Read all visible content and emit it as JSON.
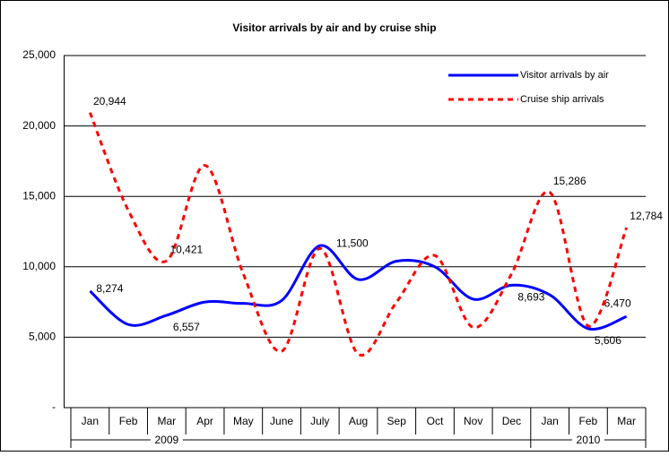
{
  "chart_data": {
    "type": "line",
    "title": "Visitor arrivals by air and by cruise ship",
    "category_groups": [
      {
        "label": "2009",
        "categories": [
          "Jan",
          "Feb",
          "Mar",
          "Apr",
          "May",
          "June",
          "July",
          "Aug",
          "Sep",
          "Oct",
          "Nov",
          "Dec"
        ]
      },
      {
        "label": "2010",
        "categories": [
          "Jan",
          "Feb",
          "Mar"
        ]
      }
    ],
    "series": [
      {
        "name": "Visitor arrivals by air",
        "color": "#0000ff",
        "dash": false,
        "values": [
          8274,
          5900,
          6557,
          7500,
          7400,
          7600,
          11500,
          9100,
          10400,
          10000,
          7700,
          8693,
          8000,
          5606,
          6470
        ],
        "value_labels": [
          "8,274",
          null,
          "6,557",
          null,
          null,
          null,
          "11,500",
          null,
          null,
          null,
          null,
          "8,693",
          null,
          "5,606",
          "6,470"
        ]
      },
      {
        "name": "Cruise ship arrivals",
        "color": "#ff0000",
        "dash": true,
        "values": [
          20944,
          14000,
          10421,
          17200,
          9500,
          4000,
          11300,
          3800,
          7500,
          10800,
          5700,
          9500,
          15286,
          5800,
          12784
        ],
        "value_labels": [
          "20,944",
          null,
          "10,421",
          null,
          null,
          null,
          null,
          null,
          null,
          null,
          null,
          null,
          "15,286",
          null,
          "12,784"
        ]
      }
    ],
    "ylim": [
      0,
      25000
    ],
    "yticks": [
      {
        "value": 0,
        "label": "-"
      },
      {
        "value": 5000,
        "label": "5,000"
      },
      {
        "value": 10000,
        "label": "10,000"
      },
      {
        "value": 15000,
        "label": "15,000"
      },
      {
        "value": 20000,
        "label": "20,000"
      },
      {
        "value": 25000,
        "label": "25,000"
      }
    ],
    "grid": true,
    "legend": "top-right"
  }
}
